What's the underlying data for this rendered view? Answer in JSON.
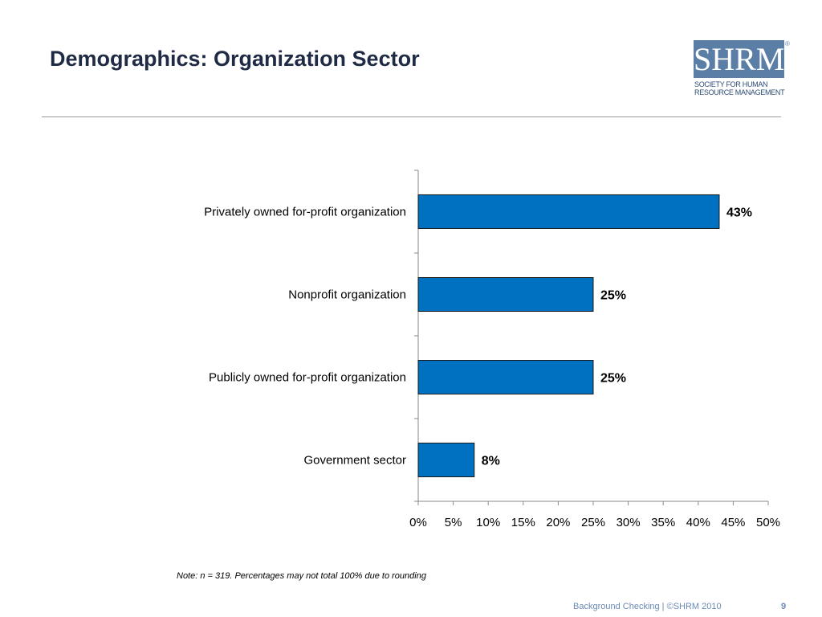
{
  "slide": {
    "title": "Demographics: Organization Sector",
    "note": "Note: n = 319. Percentages may not total 100% due to rounding",
    "footer": "Background Checking | ©SHRM 2010",
    "page_number": "9"
  },
  "logo": {
    "mark": "SHRM",
    "line1": "SOCIETY FOR HUMAN",
    "line2": "RESOURCE MANAGEMENT",
    "registered": "®"
  },
  "chart_data": {
    "type": "bar",
    "orientation": "horizontal",
    "categories": [
      "Privately owned for-profit organization",
      "Nonprofit organization",
      "Publicly owned for-profit organization",
      "Government sector"
    ],
    "values": [
      43,
      25,
      25,
      8
    ],
    "data_labels": [
      "43%",
      "25%",
      "25%",
      "8%"
    ],
    "x_ticks": [
      "0%",
      "5%",
      "10%",
      "15%",
      "20%",
      "25%",
      "30%",
      "35%",
      "40%",
      "45%",
      "50%"
    ],
    "xlim": [
      0,
      50
    ],
    "title": "",
    "xlabel": "",
    "ylabel": "",
    "grid": false,
    "legend": "none",
    "bar_color": "#0070c0"
  }
}
